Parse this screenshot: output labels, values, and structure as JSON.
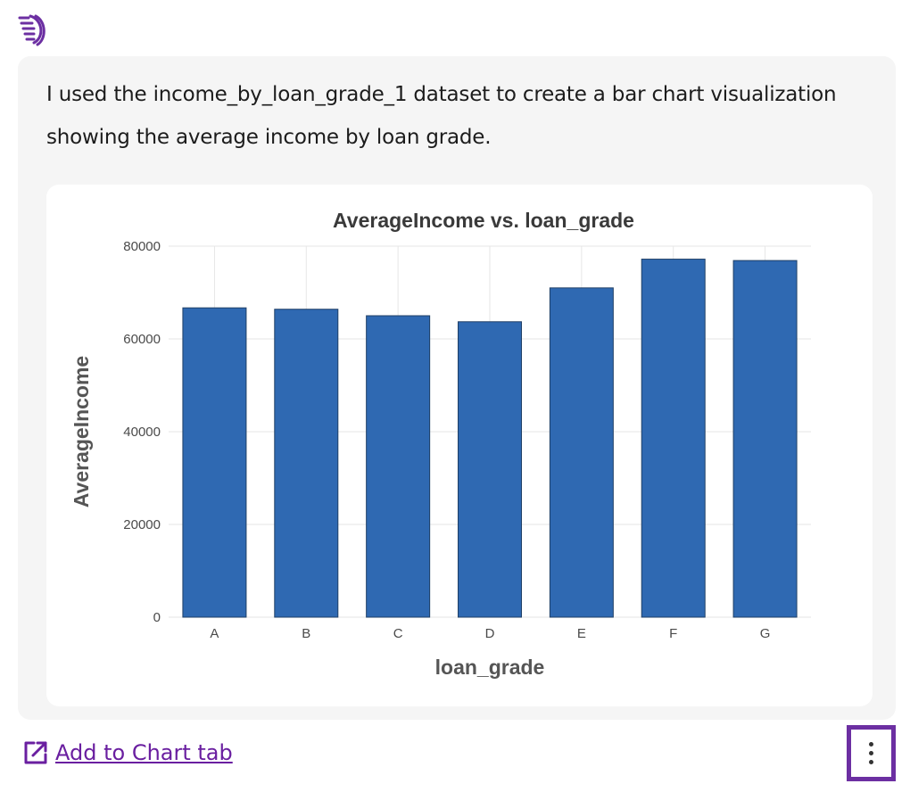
{
  "assistant": {
    "logo_icon": "assistant-logo-icon",
    "message": "I used the income_by_loan_grade_1 dataset to create a bar chart visualization showing the average income by loan grade."
  },
  "chart_data": {
    "type": "bar",
    "title": "AverageIncome vs. loan_grade",
    "xlabel": "loan_grade",
    "ylabel": "AverageIncome",
    "categories": [
      "A",
      "B",
      "C",
      "D",
      "E",
      "F",
      "G"
    ],
    "values": [
      66700,
      66400,
      65000,
      63700,
      71000,
      77200,
      76900
    ],
    "ylim": [
      0,
      80000
    ],
    "yticks": [
      "0",
      "20000",
      "40000",
      "60000",
      "80000"
    ],
    "grid": true,
    "bar_color": "#2f69b2"
  },
  "actions": {
    "add_to_chart_label": "Add to Chart tab",
    "add_icon": "open-external-icon",
    "more_icon": "more-vertical-icon",
    "accent_color": "#6c2fa2"
  }
}
